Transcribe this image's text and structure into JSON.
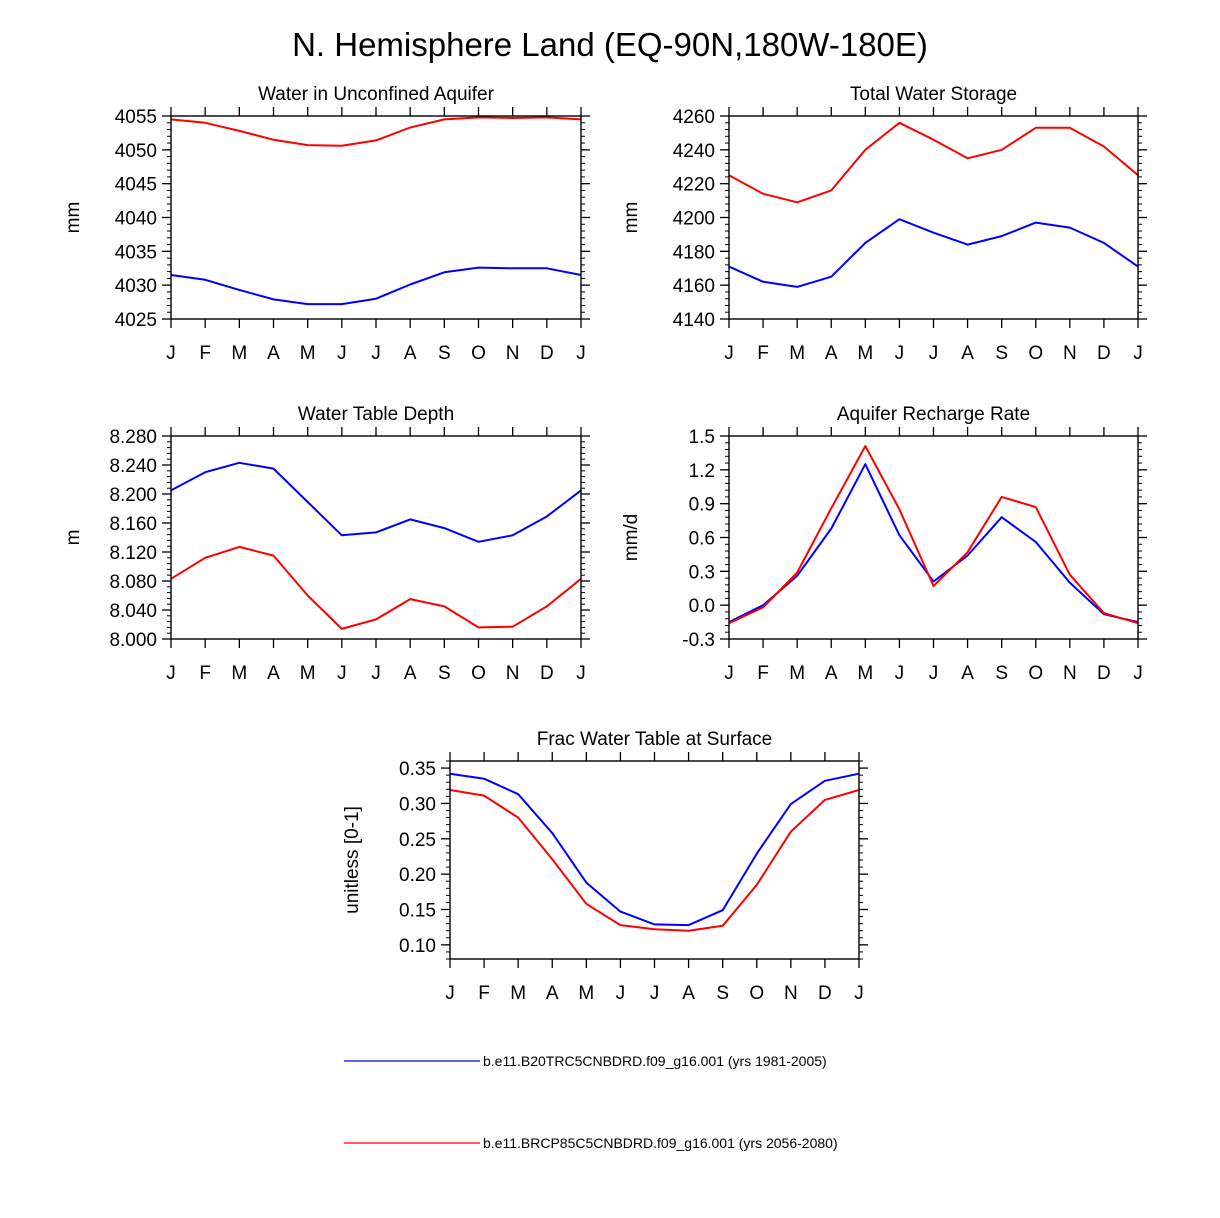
{
  "title": "N. Hemisphere Land (EQ-90N,180W-180E)",
  "colors": {
    "series1": "#0000ff",
    "series2": "#ff0000",
    "axis": "#000000"
  },
  "legend": [
    {
      "label": "b.e11.B20TRC5CNBDRD.f09_g16.001 (yrs 1981-2005)",
      "color": "#0000ff"
    },
    {
      "label": "b.e11.BRCP85C5CNBDRD.f09_g16.001 (yrs 2056-2080)",
      "color": "#ff0000"
    }
  ],
  "chart_data": [
    {
      "type": "line",
      "title": "Water in Unconfined Aquifer",
      "ylabel": "mm",
      "categories": [
        "J",
        "F",
        "M",
        "A",
        "M",
        "J",
        "J",
        "A",
        "S",
        "O",
        "N",
        "D",
        "J"
      ],
      "ylim": [
        4025,
        4055
      ],
      "yticks": [
        4025,
        4030,
        4035,
        4040,
        4045,
        4050,
        4055
      ],
      "ytick_labels": [
        "4025",
        "4030",
        "4035",
        "4040",
        "4045",
        "4050",
        "4055"
      ],
      "series": [
        {
          "name": "b.e11.B20TRC5CNBDRD.f09_g16.001 (yrs 1981-2005)",
          "color": "#0000ff",
          "values": [
            4031.5,
            4030.8,
            4029.3,
            4027.9,
            4027.2,
            4027.2,
            4028.0,
            4030.1,
            4031.9,
            4032.6,
            4032.5,
            4032.5,
            4031.5
          ]
        },
        {
          "name": "b.e11.BRCP85C5CNBDRD.f09_g16.001 (yrs 2056-2080)",
          "color": "#ff0000",
          "values": [
            4054.5,
            4054.0,
            4052.8,
            4051.5,
            4050.7,
            4050.6,
            4051.4,
            4053.3,
            4054.5,
            4054.8,
            4054.7,
            4054.8,
            4054.5
          ]
        }
      ]
    },
    {
      "type": "line",
      "title": "Total Water Storage",
      "ylabel": "mm",
      "categories": [
        "J",
        "F",
        "M",
        "A",
        "M",
        "J",
        "J",
        "A",
        "S",
        "O",
        "N",
        "D",
        "J"
      ],
      "ylim": [
        4140,
        4260
      ],
      "yticks": [
        4140,
        4160,
        4180,
        4200,
        4220,
        4240,
        4260
      ],
      "ytick_labels": [
        "4140",
        "4160",
        "4180",
        "4200",
        "4220",
        "4240",
        "4260"
      ],
      "series": [
        {
          "name": "b.e11.B20TRC5CNBDRD.f09_g16.001 (yrs 1981-2005)",
          "color": "#0000ff",
          "values": [
            4171,
            4162,
            4159,
            4165,
            4185,
            4199,
            4191,
            4184,
            4189,
            4197,
            4194,
            4185,
            4171
          ]
        },
        {
          "name": "b.e11.BRCP85C5CNBDRD.f09_g16.001 (yrs 2056-2080)",
          "color": "#ff0000",
          "values": [
            4225,
            4214,
            4209,
            4216,
            4240,
            4256,
            4246,
            4235,
            4240,
            4253,
            4253,
            4242,
            4225
          ]
        }
      ]
    },
    {
      "type": "line",
      "title": "Water Table Depth",
      "ylabel": "m",
      "categories": [
        "J",
        "F",
        "M",
        "A",
        "M",
        "J",
        "J",
        "A",
        "S",
        "O",
        "N",
        "D",
        "J"
      ],
      "ylim": [
        8.0,
        8.28
      ],
      "yticks": [
        8.0,
        8.04,
        8.08,
        8.12,
        8.16,
        8.2,
        8.24,
        8.28
      ],
      "ytick_labels": [
        "8.000",
        "8.040",
        "8.080",
        "8.120",
        "8.160",
        "8.200",
        "8.240",
        "8.280"
      ],
      "series": [
        {
          "name": "b.e11.B20TRC5CNBDRD.f09_g16.001 (yrs 1981-2005)",
          "color": "#0000ff",
          "values": [
            8.205,
            8.23,
            8.243,
            8.235,
            8.189,
            8.143,
            8.147,
            8.165,
            8.153,
            8.134,
            8.143,
            8.169,
            8.205
          ]
        },
        {
          "name": "b.e11.BRCP85C5CNBDRD.f09_g16.001 (yrs 2056-2080)",
          "color": "#ff0000",
          "values": [
            8.083,
            8.112,
            8.127,
            8.115,
            8.06,
            8.014,
            8.027,
            8.055,
            8.045,
            8.016,
            8.017,
            8.045,
            8.083
          ]
        }
      ]
    },
    {
      "type": "line",
      "title": "Aquifer Recharge Rate",
      "ylabel": "mm/d",
      "categories": [
        "J",
        "F",
        "M",
        "A",
        "M",
        "J",
        "J",
        "A",
        "S",
        "O",
        "N",
        "D",
        "J"
      ],
      "ylim": [
        -0.3,
        1.5
      ],
      "yticks": [
        -0.3,
        0.0,
        0.3,
        0.6,
        0.9,
        1.2,
        1.5
      ],
      "ytick_labels": [
        "-0.3",
        "0.0",
        "0.3",
        "0.6",
        "0.9",
        "1.2",
        "1.5"
      ],
      "series": [
        {
          "name": "b.e11.B20TRC5CNBDRD.f09_g16.001 (yrs 1981-2005)",
          "color": "#0000ff",
          "values": [
            -0.15,
            0.0,
            0.26,
            0.68,
            1.25,
            0.62,
            0.21,
            0.44,
            0.78,
            0.56,
            0.2,
            -0.08,
            -0.15
          ]
        },
        {
          "name": "b.e11.BRCP85C5CNBDRD.f09_g16.001 (yrs 2056-2080)",
          "color": "#ff0000",
          "values": [
            -0.16,
            -0.02,
            0.29,
            0.86,
            1.41,
            0.85,
            0.17,
            0.47,
            0.96,
            0.87,
            0.27,
            -0.07,
            -0.16
          ]
        }
      ]
    },
    {
      "type": "line",
      "title": "Frac Water Table at Surface",
      "ylabel": "unitless [0-1]",
      "categories": [
        "J",
        "F",
        "M",
        "A",
        "M",
        "J",
        "J",
        "A",
        "S",
        "O",
        "N",
        "D",
        "J"
      ],
      "ylim": [
        0.08,
        0.36
      ],
      "yticks": [
        0.1,
        0.15,
        0.2,
        0.25,
        0.3,
        0.35
      ],
      "ytick_labels": [
        "0.10",
        "0.15",
        "0.20",
        "0.25",
        "0.30",
        "0.35"
      ],
      "series": [
        {
          "name": "b.e11.B20TRC5CNBDRD.f09_g16.001 (yrs 1981-2005)",
          "color": "#0000ff",
          "values": [
            0.342,
            0.335,
            0.313,
            0.258,
            0.188,
            0.147,
            0.129,
            0.128,
            0.149,
            0.229,
            0.299,
            0.332,
            0.342
          ]
        },
        {
          "name": "b.e11.BRCP85C5CNBDRD.f09_g16.001 (yrs 2056-2080)",
          "color": "#ff0000",
          "values": [
            0.319,
            0.311,
            0.28,
            0.221,
            0.158,
            0.128,
            0.122,
            0.12,
            0.127,
            0.185,
            0.26,
            0.305,
            0.319
          ]
        }
      ]
    }
  ]
}
